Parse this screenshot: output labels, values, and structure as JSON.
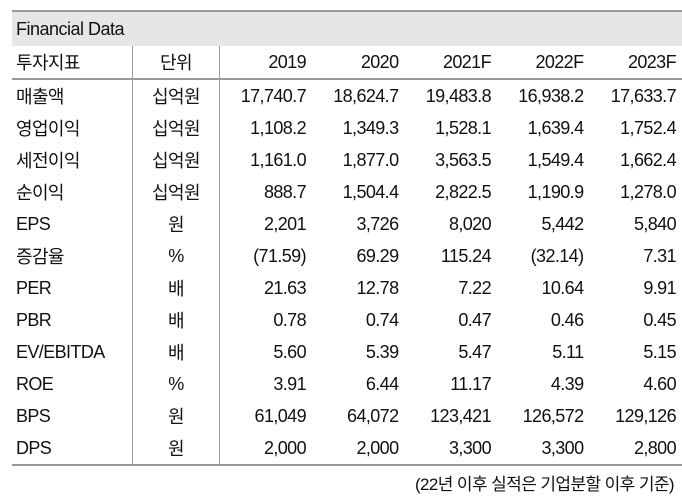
{
  "title": "Financial Data",
  "headers": [
    "투자지표",
    "단위",
    "2019",
    "2020",
    "2021F",
    "2022F",
    "2023F"
  ],
  "rows": [
    {
      "label": "매출액",
      "unit": "십억원",
      "values": [
        "17,740.7",
        "18,624.7",
        "19,483.8",
        "16,938.2",
        "17,633.7"
      ]
    },
    {
      "label": "영업이익",
      "unit": "십억원",
      "values": [
        "1,108.2",
        "1,349.3",
        "1,528.1",
        "1,639.4",
        "1,752.4"
      ]
    },
    {
      "label": "세전이익",
      "unit": "십억원",
      "values": [
        "1,161.0",
        "1,877.0",
        "3,563.5",
        "1,549.4",
        "1,662.4"
      ]
    },
    {
      "label": "순이익",
      "unit": "십억원",
      "values": [
        "888.7",
        "1,504.4",
        "2,822.5",
        "1,190.9",
        "1,278.0"
      ]
    },
    {
      "label": "EPS",
      "unit": "원",
      "values": [
        "2,201",
        "3,726",
        "8,020",
        "5,442",
        "5,840"
      ]
    },
    {
      "label": "증감율",
      "unit": "%",
      "values": [
        "(71.59)",
        "69.29",
        "115.24",
        "(32.14)",
        "7.31"
      ]
    },
    {
      "label": "PER",
      "unit": "배",
      "values": [
        "21.63",
        "12.78",
        "7.22",
        "10.64",
        "9.91"
      ]
    },
    {
      "label": "PBR",
      "unit": "배",
      "values": [
        "0.78",
        "0.74",
        "0.47",
        "0.46",
        "0.45"
      ]
    },
    {
      "label": "EV/EBITDA",
      "unit": "배",
      "values": [
        "5.60",
        "5.39",
        "5.47",
        "5.11",
        "5.15"
      ]
    },
    {
      "label": "ROE",
      "unit": "%",
      "values": [
        "3.91",
        "6.44",
        "11.17",
        "4.39",
        "4.60"
      ]
    },
    {
      "label": "BPS",
      "unit": "원",
      "values": [
        "61,049",
        "64,072",
        "123,421",
        "126,572",
        "129,126"
      ]
    },
    {
      "label": "DPS",
      "unit": "원",
      "values": [
        "2,000",
        "2,000",
        "3,300",
        "3,300",
        "2,800"
      ]
    }
  ],
  "footnote": "(22년 이후 실적은 기업분할 이후 기준)"
}
